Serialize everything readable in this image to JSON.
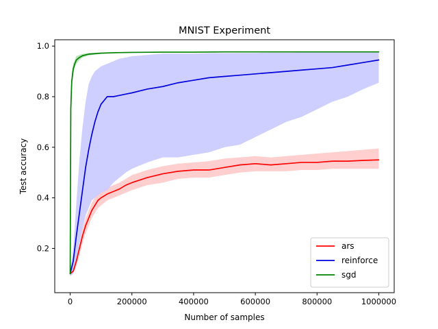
{
  "chart_data": {
    "type": "line",
    "title": "MNIST Experiment",
    "xlabel": "Number of samples",
    "ylabel": "Test accuracy",
    "xlim": [
      -50000,
      1050000
    ],
    "ylim": [
      0.025,
      1.025
    ],
    "xticks": [
      0,
      200000,
      400000,
      600000,
      800000,
      1000000
    ],
    "xtick_labels": [
      "0",
      "200000",
      "400000",
      "600000",
      "800000",
      "1000000"
    ],
    "yticks": [
      0.2,
      0.4,
      0.6,
      0.8,
      1.0
    ],
    "ytick_labels": [
      "0.2",
      "0.4",
      "0.6",
      "0.8",
      "1.0"
    ],
    "grid": false,
    "legend": {
      "location": "lower-right",
      "entries": [
        "ars",
        "reinforce",
        "sgd"
      ]
    },
    "series": [
      {
        "name": "ars",
        "color": "#ff0000",
        "band_color": "#ffcccc",
        "x": [
          0,
          10000,
          20000,
          30000,
          40000,
          50000,
          60000,
          70000,
          80000,
          90000,
          100000,
          120000,
          140000,
          160000,
          180000,
          200000,
          250000,
          300000,
          350000,
          400000,
          450000,
          500000,
          550000,
          600000,
          650000,
          700000,
          750000,
          800000,
          850000,
          900000,
          950000,
          1000000
        ],
        "mean": [
          0.1,
          0.11,
          0.15,
          0.2,
          0.25,
          0.29,
          0.32,
          0.35,
          0.37,
          0.39,
          0.4,
          0.415,
          0.425,
          0.435,
          0.45,
          0.46,
          0.48,
          0.495,
          0.505,
          0.51,
          0.51,
          0.52,
          0.53,
          0.535,
          0.53,
          0.535,
          0.54,
          0.54,
          0.545,
          0.545,
          0.548,
          0.55
        ],
        "lower": [
          0.09,
          0.1,
          0.13,
          0.17,
          0.22,
          0.26,
          0.29,
          0.32,
          0.34,
          0.36,
          0.37,
          0.39,
          0.4,
          0.41,
          0.42,
          0.43,
          0.45,
          0.46,
          0.475,
          0.48,
          0.48,
          0.49,
          0.5,
          0.505,
          0.505,
          0.505,
          0.51,
          0.51,
          0.515,
          0.515,
          0.515,
          0.515
        ],
        "upper": [
          0.11,
          0.12,
          0.17,
          0.23,
          0.28,
          0.32,
          0.35,
          0.38,
          0.4,
          0.42,
          0.43,
          0.44,
          0.45,
          0.46,
          0.475,
          0.49,
          0.51,
          0.525,
          0.535,
          0.54,
          0.545,
          0.555,
          0.56,
          0.565,
          0.56,
          0.565,
          0.57,
          0.575,
          0.58,
          0.585,
          0.59,
          0.595
        ]
      },
      {
        "name": "reinforce",
        "color": "#0000dd",
        "band_color": "#ccccff",
        "x": [
          0,
          10000,
          20000,
          30000,
          40000,
          50000,
          60000,
          70000,
          80000,
          90000,
          100000,
          120000,
          140000,
          160000,
          180000,
          200000,
          250000,
          300000,
          350000,
          400000,
          450000,
          500000,
          550000,
          600000,
          650000,
          700000,
          750000,
          800000,
          850000,
          900000,
          950000,
          1000000
        ],
        "mean": [
          0.1,
          0.15,
          0.25,
          0.34,
          0.43,
          0.52,
          0.59,
          0.65,
          0.7,
          0.74,
          0.77,
          0.8,
          0.8,
          0.805,
          0.81,
          0.815,
          0.83,
          0.84,
          0.855,
          0.865,
          0.875,
          0.88,
          0.885,
          0.89,
          0.895,
          0.9,
          0.905,
          0.91,
          0.915,
          0.925,
          0.935,
          0.945
        ],
        "lower": [
          0.09,
          0.1,
          0.15,
          0.22,
          0.28,
          0.33,
          0.36,
          0.39,
          0.4,
          0.41,
          0.42,
          0.43,
          0.46,
          0.48,
          0.5,
          0.515,
          0.54,
          0.56,
          0.56,
          0.57,
          0.58,
          0.6,
          0.61,
          0.64,
          0.67,
          0.7,
          0.72,
          0.75,
          0.78,
          0.8,
          0.83,
          0.855
        ],
        "upper": [
          0.11,
          0.2,
          0.38,
          0.55,
          0.68,
          0.78,
          0.85,
          0.88,
          0.9,
          0.91,
          0.92,
          0.93,
          0.94,
          0.95,
          0.955,
          0.96,
          0.965,
          0.97,
          0.97,
          0.97,
          0.972,
          0.972,
          0.973,
          0.973,
          0.974,
          0.974,
          0.975,
          0.975,
          0.975,
          0.975,
          0.975,
          0.975
        ]
      },
      {
        "name": "sgd",
        "color": "#008000",
        "band_color": "#b2e0b2",
        "x": [
          0,
          2000,
          5000,
          10000,
          15000,
          20000,
          30000,
          40000,
          60000,
          80000,
          100000,
          150000,
          200000,
          300000,
          400000,
          500000,
          600000,
          700000,
          800000,
          900000,
          1000000
        ],
        "mean": [
          0.1,
          0.75,
          0.86,
          0.91,
          0.93,
          0.945,
          0.955,
          0.962,
          0.968,
          0.97,
          0.972,
          0.974,
          0.975,
          0.976,
          0.976,
          0.977,
          0.977,
          0.977,
          0.977,
          0.977,
          0.977
        ],
        "lower": [
          0.09,
          0.7,
          0.83,
          0.89,
          0.915,
          0.93,
          0.945,
          0.955,
          0.963,
          0.966,
          0.969,
          0.972,
          0.973,
          0.975,
          0.975,
          0.976,
          0.976,
          0.976,
          0.976,
          0.976,
          0.976
        ],
        "upper": [
          0.11,
          0.8,
          0.89,
          0.93,
          0.945,
          0.96,
          0.965,
          0.969,
          0.973,
          0.974,
          0.975,
          0.976,
          0.977,
          0.977,
          0.977,
          0.978,
          0.978,
          0.978,
          0.978,
          0.978,
          0.978
        ]
      }
    ]
  }
}
